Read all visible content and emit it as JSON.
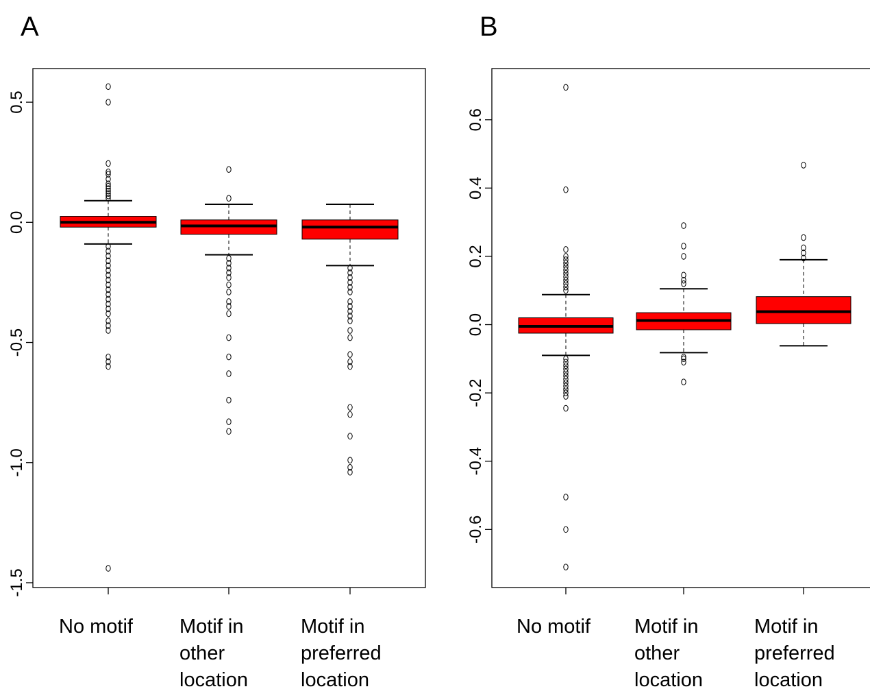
{
  "chart_data": [
    {
      "type": "boxplot",
      "panel_label": "A",
      "categories": [
        "No motif",
        "Motif in\nother\nlocation",
        "Motif in\npreferred\nlocation"
      ],
      "ylim": [
        -1.52,
        0.64
      ],
      "y_ticks": [
        0.5,
        0.0,
        -0.5,
        -1.0,
        -1.5
      ],
      "y_tick_labels": [
        "0.5",
        "0.0",
        "-0.5",
        "-1.0",
        "-1.5"
      ],
      "grid": false,
      "box_color": "#ff0000",
      "boxes": [
        {
          "q1": -0.02,
          "median": 0.0,
          "q3": 0.025,
          "whisker_low": -0.09,
          "whisker_high": 0.09,
          "outliers": [
            0.565,
            0.5,
            0.245,
            0.21,
            0.2,
            0.18,
            0.16,
            0.15,
            0.14,
            0.13,
            0.12,
            0.11,
            0.1,
            -0.1,
            -0.12,
            -0.14,
            -0.16,
            -0.18,
            -0.2,
            -0.22,
            -0.24,
            -0.26,
            -0.28,
            -0.3,
            -0.32,
            -0.34,
            -0.36,
            -0.38,
            -0.41,
            -0.43,
            -0.45,
            -0.56,
            -0.58,
            -0.6,
            -1.44
          ]
        },
        {
          "q1": -0.05,
          "median": -0.015,
          "q3": 0.01,
          "whisker_low": -0.135,
          "whisker_high": 0.075,
          "outliers": [
            0.22,
            0.1,
            -0.15,
            -0.17,
            -0.19,
            -0.21,
            -0.23,
            -0.26,
            -0.29,
            -0.33,
            -0.35,
            -0.38,
            -0.48,
            -0.56,
            -0.63,
            -0.74,
            -0.83,
            -0.87
          ]
        },
        {
          "q1": -0.07,
          "median": -0.02,
          "q3": 0.01,
          "whisker_low": -0.18,
          "whisker_high": 0.075,
          "outliers": [
            -0.19,
            -0.21,
            -0.23,
            -0.25,
            -0.27,
            -0.29,
            -0.33,
            -0.35,
            -0.37,
            -0.39,
            -0.41,
            -0.45,
            -0.48,
            -0.55,
            -0.58,
            -0.6,
            -0.77,
            -0.8,
            -0.89,
            -0.99,
            -1.02,
            -1.04
          ]
        }
      ]
    },
    {
      "type": "boxplot",
      "panel_label": "B",
      "categories": [
        "No motif",
        "Motif in\nother\nlocation",
        "Motif in\npreferred\nlocation"
      ],
      "ylim": [
        -0.77,
        0.75
      ],
      "y_ticks": [
        0.6,
        0.4,
        0.2,
        0.0,
        -0.2,
        -0.4,
        -0.6
      ],
      "y_tick_labels": [
        "0.6",
        "0.4",
        "0.2",
        "0.0",
        "-0.2",
        "-0.4",
        "-0.6"
      ],
      "grid": false,
      "box_color": "#ff0000",
      "boxes": [
        {
          "q1": -0.025,
          "median": -0.005,
          "q3": 0.02,
          "whisker_low": -0.09,
          "whisker_high": 0.088,
          "outliers": [
            0.695,
            0.395,
            0.22,
            0.2,
            0.19,
            0.18,
            0.17,
            0.16,
            0.15,
            0.14,
            0.13,
            0.12,
            0.11,
            0.1,
            -0.1,
            -0.11,
            -0.12,
            -0.13,
            -0.14,
            -0.15,
            -0.16,
            -0.17,
            -0.18,
            -0.19,
            -0.2,
            -0.21,
            -0.245,
            -0.505,
            -0.6,
            -0.71
          ]
        },
        {
          "q1": -0.015,
          "median": 0.012,
          "q3": 0.035,
          "whisker_low": -0.082,
          "whisker_high": 0.105,
          "outliers": [
            0.29,
            0.23,
            0.2,
            0.145,
            0.13,
            0.12,
            -0.095,
            -0.1,
            -0.11,
            -0.168
          ]
        },
        {
          "q1": 0.003,
          "median": 0.038,
          "q3": 0.082,
          "whisker_low": -0.062,
          "whisker_high": 0.19,
          "outliers": [
            0.467,
            0.255,
            0.225,
            0.21,
            0.195
          ]
        }
      ]
    }
  ]
}
